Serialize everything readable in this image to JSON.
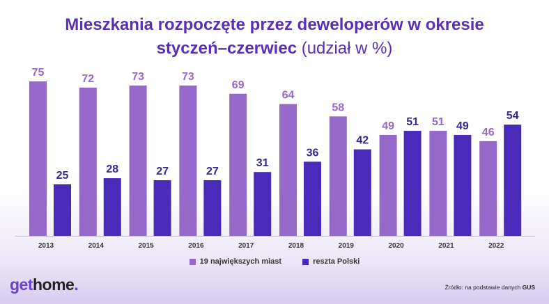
{
  "title": {
    "line1": "Mieszkania rozpoczęte przez deweloperów w okresie",
    "line2_bold": "styczeń–czerwiec",
    "line2_light": "(udział w %)"
  },
  "colors": {
    "title": "#5b2fb3",
    "series1": "#9668c9",
    "series2": "#4a2ab8",
    "label1": "#9668c9",
    "label2": "#3a2590"
  },
  "chart_data": {
    "type": "bar",
    "title": "Mieszkania rozpoczęte przez deweloperów w okresie styczeń–czerwiec (udział w %)",
    "categories": [
      "2013",
      "2014",
      "2015",
      "2016",
      "2017",
      "2018",
      "2019",
      "2020",
      "2021",
      "2022"
    ],
    "series": [
      {
        "name": "19 największych miast",
        "values": [
          75,
          72,
          73,
          73,
          69,
          64,
          58,
          49,
          51,
          46
        ]
      },
      {
        "name": "reszta Polski",
        "values": [
          25,
          28,
          27,
          27,
          31,
          36,
          42,
          51,
          49,
          54
        ]
      }
    ],
    "ylim": [
      0,
      80
    ],
    "xlabel": "",
    "ylabel": "",
    "legend_position": "bottom-center"
  },
  "logo": {
    "get": "get",
    "home": "home",
    "dot": "."
  },
  "source": {
    "prefix": "Źródło: na podstawie danych",
    "org": "GUS"
  }
}
